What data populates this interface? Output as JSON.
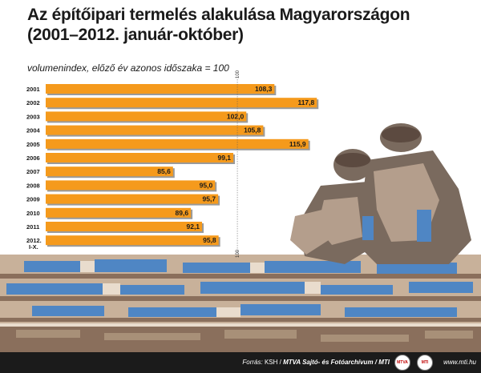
{
  "header": {
    "title_line1": "Az építőipari termelés alakulása Magyarországon",
    "title_line2": "(2001–2012. január-október)",
    "subtitle": "volumenindex, előző év azonos időszaka = 100"
  },
  "footer": {
    "source_label": "Forrás:",
    "source_text": "KSH /",
    "source_org": "MTVA Sajtó- és Fotóarchívum / MTI",
    "logo1": "MTVA",
    "logo2": "MTI",
    "site": "www.mti.hu"
  },
  "colors": {
    "bar": "#f59a1c",
    "bar_shadow": "#9a9a9a",
    "background_art_tan": "#c8b19a",
    "background_art_blue": "#4f86c4",
    "background_art_brown": "#8a6f5c"
  },
  "chart_data": {
    "type": "bar",
    "orientation": "horizontal",
    "categories": [
      "2001",
      "2002",
      "2003",
      "2004",
      "2005",
      "2006",
      "2007",
      "2008",
      "2009",
      "2010",
      "2011",
      "2012. I-X."
    ],
    "values": [
      108.3,
      117.8,
      102.0,
      105.8,
      115.9,
      99.1,
      85.6,
      95.0,
      95.7,
      89.6,
      92.1,
      95.8
    ],
    "value_labels": [
      "108,3",
      "117,8",
      "102,0",
      "105,8",
      "115,9",
      "99,1",
      "85,6",
      "95,0",
      "95,7",
      "89,6",
      "92,1",
      "95,8"
    ],
    "reference_value": 100,
    "reference_label": "100",
    "xlim": [
      57.1,
      122.6
    ],
    "title": "Az építőipari termelés alakulása Magyarországon (2001–2012. január-október)",
    "ylabel": "",
    "xlabel": "volumenindex, előző év azonos időszaka = 100",
    "grid": false,
    "legend": "none"
  }
}
